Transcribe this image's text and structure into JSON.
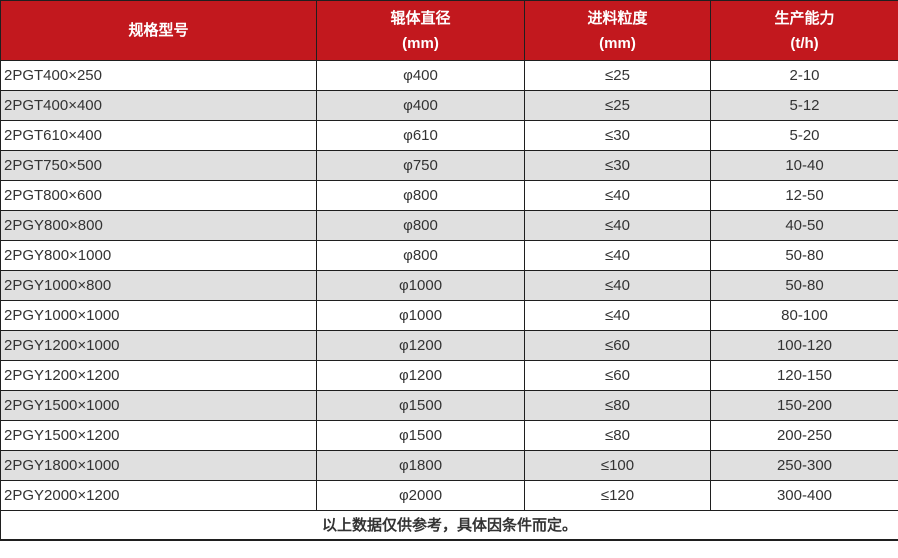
{
  "table": {
    "columns": [
      {
        "title": "规格型号",
        "unit": ""
      },
      {
        "title": "辊体直径",
        "unit": "(mm)"
      },
      {
        "title": "进料粒度",
        "unit": "(mm)"
      },
      {
        "title": "生产能力",
        "unit": "(t/h)"
      }
    ],
    "rows": [
      [
        "2PGT400×250",
        "φ400",
        "≤25",
        "2-10"
      ],
      [
        "2PGT400×400",
        "φ400",
        "≤25",
        "5-12"
      ],
      [
        "2PGT610×400",
        "φ610",
        "≤30",
        "5-20"
      ],
      [
        "2PGT750×500",
        "φ750",
        "≤30",
        "10-40"
      ],
      [
        "2PGT800×600",
        "φ800",
        "≤40",
        "12-50"
      ],
      [
        "2PGY800×800",
        "φ800",
        "≤40",
        "40-50"
      ],
      [
        "2PGY800×1000",
        "φ800",
        "≤40",
        "50-80"
      ],
      [
        "2PGY1000×800",
        "φ1000",
        "≤40",
        "50-80"
      ],
      [
        "2PGY1000×1000",
        "φ1000",
        "≤40",
        "80-100"
      ],
      [
        "2PGY1200×1000",
        "φ1200",
        "≤60",
        "100-120"
      ],
      [
        "2PGY1200×1200",
        "φ1200",
        "≤60",
        "120-150"
      ],
      [
        "2PGY1500×1000",
        "φ1500",
        "≤80",
        "150-200"
      ],
      [
        "2PGY1500×1200",
        "φ1500",
        "≤80",
        "200-250"
      ],
      [
        "2PGY1800×1000",
        "φ1800",
        "≤100",
        "250-300"
      ],
      [
        "2PGY2000×1200",
        "φ2000",
        "≤120",
        "300-400"
      ]
    ],
    "footnote": "以上数据仅供参考，具体因条件而定。"
  },
  "colors": {
    "header_bg": "#c2181e",
    "header_text": "#ffffff",
    "row_even_bg": "#e0e0e0",
    "row_odd_bg": "#ffffff",
    "border": "#1f1f1f",
    "body_text": "#333333"
  }
}
